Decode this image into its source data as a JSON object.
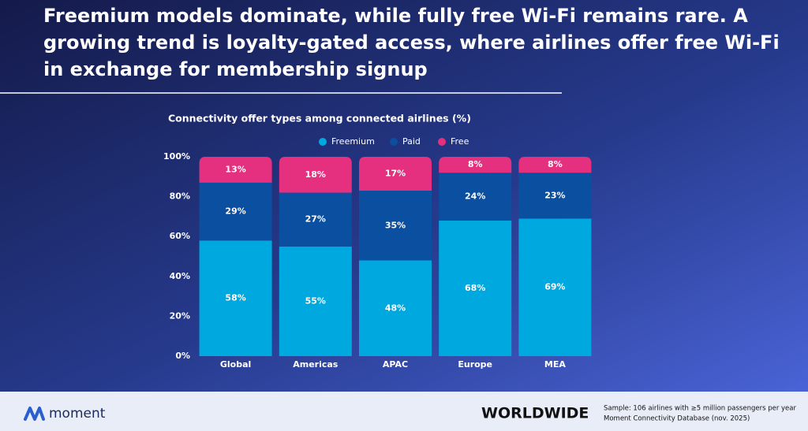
{
  "headline": [
    "Freemium models dominate, while fully free Wi-Fi remains rare. A",
    "growing trend is loyalty-gated access, where airlines offer free Wi-Fi",
    "in exchange for membership signup"
  ],
  "chart_data": {
    "type": "stacked-bar",
    "title": "Connectivity offer types among connected airlines (%)",
    "categories": [
      "Global",
      "Americas",
      "APAC",
      "Europe",
      "MEA"
    ],
    "series": [
      {
        "name": "Freemium",
        "color": "#00a8e0",
        "values": [
          58,
          55,
          48,
          68,
          69
        ],
        "value_labels": [
          "58%",
          "55%",
          "48%",
          "68%",
          "69%"
        ]
      },
      {
        "name": "Paid",
        "color": "#0b4fa1",
        "values": [
          29,
          27,
          35,
          24,
          23
        ],
        "value_labels": [
          "29%",
          "27%",
          "35%",
          "24%",
          "23%"
        ]
      },
      {
        "name": "Free",
        "color": "#e5307f",
        "values": [
          13,
          18,
          17,
          8,
          8
        ],
        "value_labels": [
          "13%",
          "18%",
          "17%",
          "8%",
          "8%"
        ]
      }
    ],
    "ylim": [
      0,
      100
    ],
    "yticks": [
      {
        "value": 0,
        "label": "0%"
      },
      {
        "value": 20,
        "label": "20%"
      },
      {
        "value": 40,
        "label": "40%"
      },
      {
        "value": 60,
        "label": "60%"
      },
      {
        "value": 80,
        "label": "80%"
      },
      {
        "value": 100,
        "label": "100%"
      }
    ],
    "grid": false
  },
  "footer": {
    "logo": "moment",
    "region": "WORLDWIDE",
    "notes": [
      "Sample: 106 airlines with ≥5 million passengers per year",
      "Moment Connectivity Database (nov. 2025)"
    ]
  }
}
